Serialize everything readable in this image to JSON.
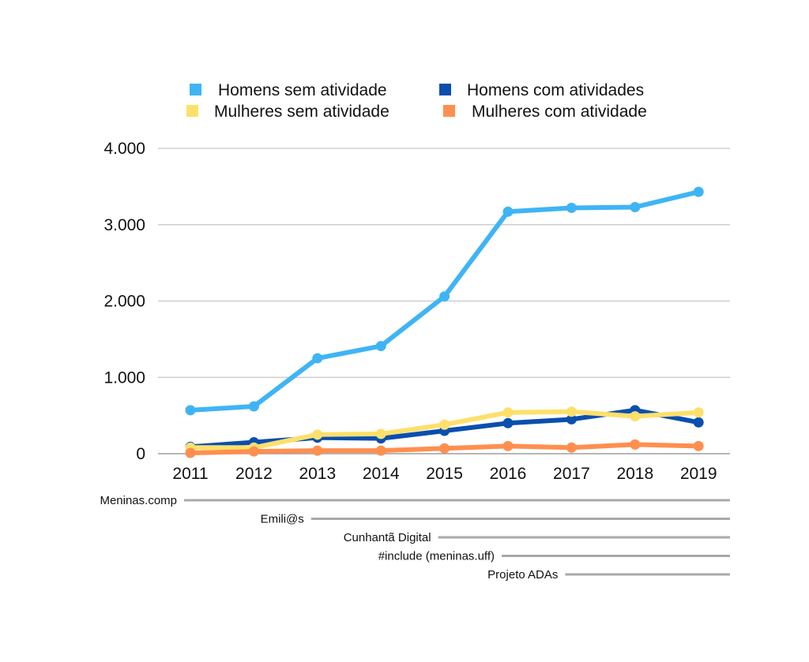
{
  "chart_data": {
    "type": "line",
    "title": "",
    "xlabel": "",
    "ylabel": "",
    "categories": [
      "2011",
      "2012",
      "2013",
      "2014",
      "2015",
      "2016",
      "2017",
      "2018",
      "2019"
    ],
    "ylim": [
      0,
      4000
    ],
    "y_ticks": [
      {
        "value": 0,
        "label": "0"
      },
      {
        "value": 1000,
        "label": "1.000"
      },
      {
        "value": 2000,
        "label": "2.000"
      },
      {
        "value": 3000,
        "label": "3.000"
      },
      {
        "value": 4000,
        "label": "4.000"
      }
    ],
    "grid": true,
    "legend_position": "top",
    "series": [
      {
        "name": "Homens sem atividade",
        "color": "#3fb4f5",
        "values": [
          570,
          620,
          1250,
          1410,
          2060,
          3170,
          3220,
          3230,
          3430
        ]
      },
      {
        "name": "Homens com atividades",
        "color": "#0a4fae",
        "values": [
          90,
          150,
          210,
          200,
          300,
          400,
          450,
          570,
          410
        ]
      },
      {
        "name": "Mulheres sem atividade",
        "color": "#fde06b",
        "values": [
          80,
          80,
          250,
          260,
          380,
          540,
          550,
          490,
          540
        ]
      },
      {
        "name": "Mulheres com atividade",
        "color": "#ff8f4f",
        "values": [
          10,
          30,
          40,
          40,
          70,
          100,
          80,
          120,
          100
        ]
      }
    ],
    "timeline": [
      {
        "label": "Meninas.comp",
        "start": "2011"
      },
      {
        "label": "Emili@s",
        "start": "2013"
      },
      {
        "label": "Cunhantã Digital",
        "start": "2015"
      },
      {
        "label": "#include (meninas.uff)",
        "start": "2016"
      },
      {
        "label": "Projeto ADAs",
        "start": "2017"
      }
    ]
  }
}
